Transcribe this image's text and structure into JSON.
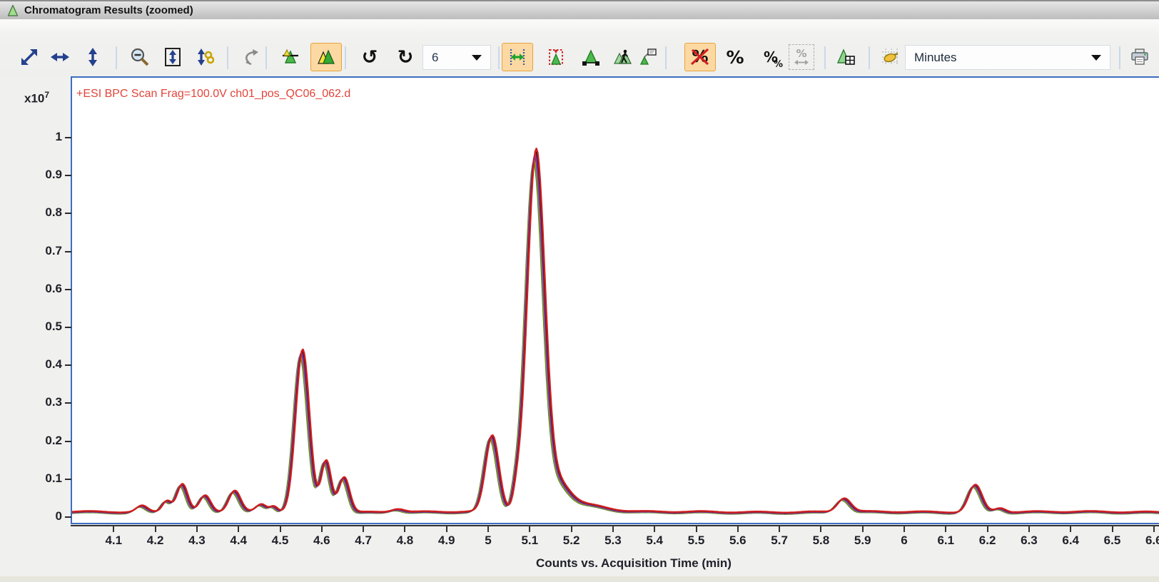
{
  "window": {
    "title": "Chromatogram Results (zoomed)"
  },
  "toolbar": {
    "zoom_history_value": "6",
    "x_axis_units_value": "Minutes",
    "undo_glyph": "↺",
    "redo_glyph": "↻",
    "percent_glyph": "%",
    "icons": [
      "expand-all",
      "expand-horizontal",
      "expand-vertical",
      "zoom-out",
      "autoscale-y",
      "autoscale-linked",
      "unzoom-anchor",
      "normalize",
      "overlay-spectra",
      "undo-zoom",
      "redo-zoom",
      "zoom-history-select",
      "x-range-select",
      "manual-range",
      "peak-integrate",
      "peak-walk",
      "peak-annotate",
      "percent-off",
      "percent",
      "percent-relative",
      "percent-range",
      "peak-table",
      "pan-hand",
      "x-axis-units-select",
      "print"
    ],
    "active_icons": [
      "overlay-spectra",
      "x-range-select",
      "percent-off"
    ],
    "disabled_icons": [
      "percent-range"
    ]
  },
  "chart_data": {
    "type": "line",
    "annotation": "+ESI BPC Scan Frag=100.0V ch01_pos_QC06_062.d",
    "annotation_color": "#e2443a",
    "xlabel": "Counts vs. Acquisition Time (min)",
    "y_scale_prefix": "x10",
    "y_scale_exponent": "7",
    "xlim": [
      4.0,
      6.612
    ],
    "ylim": [
      0,
      1.073
    ],
    "x_ticks": [
      "4.1",
      "4.2",
      "4.3",
      "4.4",
      "4.5",
      "4.6",
      "4.7",
      "4.8",
      "4.9",
      "5",
      "5.1",
      "5.2",
      "5.3",
      "5.4",
      "5.5",
      "5.6",
      "5.7",
      "5.8",
      "5.9",
      "6",
      "6.1",
      "6.2",
      "6.3",
      "6.4",
      "6.5",
      "6.6"
    ],
    "y_ticks": [
      "0",
      "0.1",
      "0.2",
      "0.3",
      "0.4",
      "0.5",
      "0.6",
      "0.7",
      "0.8",
      "0.9",
      "1"
    ],
    "grid": false,
    "baseline": 0.012,
    "trace_colors": [
      "#2f8f2f",
      "#d98e00",
      "#3a4fc0",
      "#b02ab0",
      "#1a1a1a",
      "#cf1f1f"
    ],
    "peaks": [
      {
        "t": 4.165,
        "h": 0.016,
        "w": 0.013
      },
      {
        "t": 4.225,
        "h": 0.03,
        "w": 0.011
      },
      {
        "t": 4.262,
        "h": 0.074,
        "w": 0.013
      },
      {
        "t": 4.317,
        "h": 0.042,
        "w": 0.013
      },
      {
        "t": 4.388,
        "h": 0.056,
        "w": 0.014
      },
      {
        "t": 4.452,
        "h": 0.018,
        "w": 0.012
      },
      {
        "t": 4.482,
        "h": 0.014,
        "w": 0.009
      },
      {
        "t": 4.551,
        "h": 0.42,
        "w": 0.0165
      },
      {
        "t": 4.608,
        "h": 0.133,
        "w": 0.012
      },
      {
        "t": 4.651,
        "h": 0.092,
        "w": 0.013
      },
      {
        "t": 4.78,
        "h": 0.009,
        "w": 0.016
      },
      {
        "t": 5.007,
        "h": 0.198,
        "w": 0.016
      },
      {
        "t": 5.066,
        "h": 0.035,
        "w": 0.009
      },
      {
        "t": 5.112,
        "h": 0.92,
        "w": 0.021
      },
      {
        "t": 5.162,
        "h": 0.075,
        "w": 0.03
      },
      {
        "t": 5.235,
        "h": 0.018,
        "w": 0.05
      },
      {
        "t": 5.853,
        "h": 0.036,
        "w": 0.016
      },
      {
        "t": 6.168,
        "h": 0.07,
        "w": 0.016
      },
      {
        "t": 6.228,
        "h": 0.011,
        "w": 0.013
      }
    ]
  }
}
